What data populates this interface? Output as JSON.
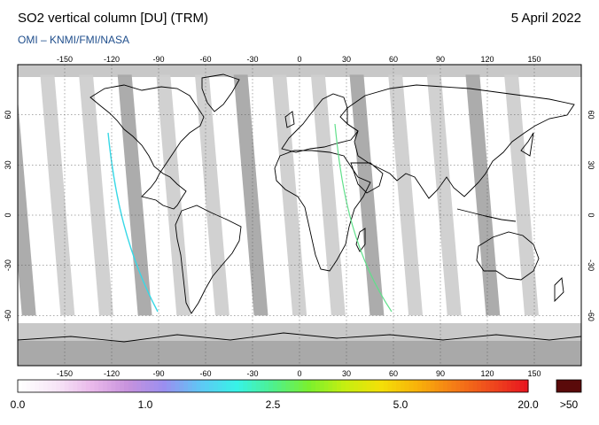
{
  "header": {
    "title": "SO2 vertical column [DU] (TRM)",
    "date": "5 April 2022",
    "credit": "OMI  –  KNMI/FMI/NASA"
  },
  "map": {
    "lon_ticks": [
      "-150",
      "-120",
      "-90",
      "-60",
      "-30",
      "0",
      "30",
      "60",
      "90",
      "120",
      "150"
    ],
    "lat_ticks": [
      "60",
      "30",
      "0",
      "-30",
      "-60"
    ],
    "lon_values": [
      -150,
      -120,
      -90,
      -60,
      -30,
      0,
      30,
      60,
      90,
      120,
      150
    ],
    "lat_values": [
      60,
      30,
      0,
      -30,
      -60
    ]
  },
  "colorbar": {
    "labels": [
      "0.0",
      "1.0",
      "2.5",
      "5.0",
      "20.0"
    ],
    "overflow_label": ">50",
    "colors": [
      "#ffffff",
      "#f7e6f7",
      "#e9b8ea",
      "#c792dd",
      "#9a8ff0",
      "#5fc7f5",
      "#37f3e7",
      "#4ef08e",
      "#7bf02e",
      "#c6ef10",
      "#f4df08",
      "#f8b10a",
      "#f57d16",
      "#ef4b1d",
      "#e8171f"
    ],
    "overflow_color": "#5a0a0a"
  }
}
